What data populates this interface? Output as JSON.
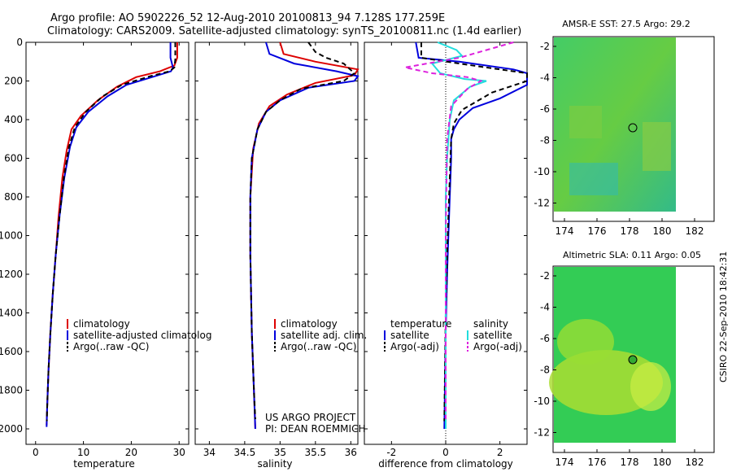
{
  "title": {
    "line1": "Argo profile: AO 5902226_52 12-Aug-2010 20100813_94 7.128S 177.259E",
    "line2": "Climatology: CARS2009. Satellite-adjusted climatology: synTS_20100811.nc (1.4d earlier)"
  },
  "colors": {
    "clim": "#dd0000",
    "sat": "#0000dd",
    "argo": "#000000",
    "sat_sal": "#22dddd",
    "argo_sal": "#dd22dd"
  },
  "chart_data": [
    {
      "type": "line",
      "title": "",
      "xlabel": "temperature",
      "ylabel": "",
      "xlim": [
        -2,
        32
      ],
      "ylim": [
        0,
        2080
      ],
      "y_reversed": true,
      "xticks": [
        "0",
        "10",
        "20",
        "30"
      ],
      "yticks": [
        "0",
        "200",
        "400",
        "600",
        "800",
        "1000",
        "1200",
        "1400",
        "1600",
        "1800",
        "2000"
      ],
      "legend": [
        "climatology",
        "satellite-adjusted climatolog",
        "Argo(..raw -QC)"
      ],
      "series": [
        {
          "name": "climatology",
          "color": "#dd0000",
          "dash": "",
          "points": [
            [
              29.6,
              0
            ],
            [
              29.6,
              80
            ],
            [
              29.0,
              120
            ],
            [
              26,
              150
            ],
            [
              21,
              180
            ],
            [
              17,
              230
            ],
            [
              13,
              300
            ],
            [
              9.5,
              380
            ],
            [
              7.5,
              450
            ],
            [
              6.5,
              560
            ],
            [
              5.6,
              700
            ],
            [
              4.8,
              900
            ],
            [
              4.2,
              1100
            ],
            [
              3.6,
              1300
            ],
            [
              3.1,
              1500
            ],
            [
              2.7,
              1700
            ],
            [
              2.4,
              1900
            ],
            [
              2.3,
              1980
            ]
          ]
        },
        {
          "name": "satellite-adjusted climatology",
          "color": "#0000dd",
          "dash": "",
          "points": [
            [
              28.2,
              0
            ],
            [
              28.2,
              80
            ],
            [
              28.7,
              130
            ],
            [
              28.3,
              150
            ],
            [
              25,
              175
            ],
            [
              19,
              220
            ],
            [
              15,
              280
            ],
            [
              11,
              360
            ],
            [
              8.5,
              440
            ],
            [
              7.2,
              540
            ],
            [
              6,
              700
            ],
            [
              5,
              900
            ],
            [
              4.2,
              1100
            ],
            [
              3.6,
              1300
            ],
            [
              3.1,
              1500
            ],
            [
              2.7,
              1700
            ],
            [
              2.4,
              1900
            ],
            [
              2.3,
              1990
            ]
          ]
        },
        {
          "name": "Argo(..raw -QC)",
          "color": "#000000",
          "dash": "6,4",
          "points": [
            [
              29.2,
              0
            ],
            [
              29.2,
              90
            ],
            [
              29.0,
              130
            ],
            [
              28,
              150
            ],
            [
              24,
              175
            ],
            [
              18,
              220
            ],
            [
              14,
              280
            ],
            [
              10.5,
              360
            ],
            [
              8.2,
              440
            ],
            [
              7.0,
              540
            ],
            [
              5.9,
              700
            ],
            [
              5.0,
              900
            ],
            [
              4.2,
              1100
            ],
            [
              3.6,
              1300
            ],
            [
              3.1,
              1500
            ],
            [
              2.7,
              1700
            ],
            [
              2.4,
              1900
            ],
            [
              2.35,
              1960
            ]
          ]
        }
      ]
    },
    {
      "type": "line",
      "title": "",
      "xlabel": "salinity",
      "ylabel": "",
      "xlim": [
        33.8,
        36.1
      ],
      "ylim": [
        0,
        2080
      ],
      "y_reversed": true,
      "xticks": [
        "34",
        "34.5",
        "35",
        "35.5",
        "36"
      ],
      "legend": [
        "climatology",
        "satellite adj. clim.",
        "Argo(..raw -QC)"
      ],
      "series": [
        {
          "name": "climatology",
          "color": "#dd0000",
          "dash": "",
          "points": [
            [
              35.0,
              0
            ],
            [
              35.05,
              60
            ],
            [
              35.5,
              100
            ],
            [
              36.1,
              140
            ],
            [
              36.05,
              170
            ],
            [
              35.5,
              210
            ],
            [
              35.1,
              270
            ],
            [
              34.85,
              330
            ],
            [
              34.7,
              420
            ],
            [
              34.62,
              550
            ],
            [
              34.58,
              800
            ],
            [
              34.58,
              1100
            ],
            [
              34.6,
              1500
            ],
            [
              34.63,
              1800
            ],
            [
              34.65,
              2000
            ]
          ]
        },
        {
          "name": "satellite adj. clim.",
          "color": "#0000dd",
          "dash": "",
          "points": [
            [
              34.8,
              0
            ],
            [
              34.85,
              60
            ],
            [
              35.2,
              110
            ],
            [
              35.8,
              150
            ],
            [
              36.1,
              175
            ],
            [
              36.05,
              200
            ],
            [
              35.4,
              235
            ],
            [
              35.0,
              300
            ],
            [
              34.8,
              360
            ],
            [
              34.68,
              450
            ],
            [
              34.6,
              600
            ],
            [
              34.58,
              800
            ],
            [
              34.58,
              1100
            ],
            [
              34.6,
              1500
            ],
            [
              34.63,
              1800
            ],
            [
              34.65,
              2000
            ]
          ]
        },
        {
          "name": "Argo(..raw -QC)",
          "color": "#000000",
          "dash": "6,4",
          "points": [
            [
              35.4,
              0
            ],
            [
              35.5,
              50
            ],
            [
              35.65,
              80
            ],
            [
              35.9,
              110
            ],
            [
              36.05,
              160
            ],
            [
              35.9,
              200
            ],
            [
              35.3,
              240
            ],
            [
              35.0,
              300
            ],
            [
              34.8,
              360
            ],
            [
              34.68,
              450
            ],
            [
              34.6,
              600
            ],
            [
              34.58,
              800
            ],
            [
              34.58,
              1100
            ],
            [
              34.6,
              1500
            ],
            [
              34.63,
              1800
            ],
            [
              34.65,
              1950
            ]
          ]
        }
      ],
      "annotations": [
        "US ARGO PROJECT",
        "PI: DEAN ROEMMICH"
      ]
    },
    {
      "type": "line",
      "title": "",
      "xlabel": "difference from climatology",
      "ylabel": "",
      "xlim": [
        -3,
        3
      ],
      "ylim": [
        0,
        2080
      ],
      "y_reversed": true,
      "xticks": [
        "-2",
        "0",
        "2"
      ],
      "legend": [
        "temperature",
        "satellite",
        "Argo(-adj)",
        "salinity",
        "satellite",
        "Argo(-adj)"
      ],
      "series": [
        {
          "name": "temperature satellite",
          "color": "#0000dd",
          "dash": "",
          "points": [
            [
              -1.1,
              0
            ],
            [
              -1.0,
              80
            ],
            [
              0.5,
              100
            ],
            [
              2.5,
              140
            ],
            [
              3,
              160
            ],
            [
              3,
              220
            ],
            [
              2.0,
              290
            ],
            [
              1.0,
              340
            ],
            [
              0.5,
              400
            ],
            [
              0.3,
              450
            ],
            [
              0.2,
              500
            ],
            [
              0.2,
              600
            ],
            [
              0.15,
              800
            ],
            [
              0.1,
              1000
            ],
            [
              0.05,
              1200
            ],
            [
              0.0,
              1500
            ],
            [
              -0.05,
              2000
            ]
          ]
        },
        {
          "name": "temperature Argo(-adj)",
          "color": "#000000",
          "dash": "6,4",
          "points": [
            [
              -0.9,
              0
            ],
            [
              -0.9,
              80
            ],
            [
              0.5,
              110
            ],
            [
              1.5,
              130
            ],
            [
              3,
              160
            ],
            [
              3,
              200
            ],
            [
              1.7,
              260
            ],
            [
              0.6,
              350
            ],
            [
              0.3,
              420
            ],
            [
              0.2,
              500
            ],
            [
              0.15,
              700
            ],
            [
              0.1,
              900
            ],
            [
              0.05,
              1100
            ],
            [
              0.0,
              1400
            ],
            [
              -0.05,
              1960
            ]
          ]
        },
        {
          "name": "salinity satellite",
          "color": "#22dddd",
          "dash": "",
          "points": [
            [
              -0.3,
              0
            ],
            [
              0.4,
              40
            ],
            [
              0.6,
              70
            ],
            [
              -0.5,
              110
            ],
            [
              -0.2,
              160
            ],
            [
              0.7,
              190
            ],
            [
              1.5,
              200
            ],
            [
              0.9,
              230
            ],
            [
              0.3,
              300
            ],
            [
              0.15,
              400
            ],
            [
              0.05,
              600
            ],
            [
              0.0,
              800
            ],
            [
              0.0,
              1200
            ],
            [
              0.0,
              1500
            ],
            [
              0.0,
              2000
            ]
          ]
        },
        {
          "name": "salinity Argo(-adj)",
          "color": "#dd22dd",
          "dash": "6,4",
          "points": [
            [
              2.5,
              0
            ],
            [
              1.5,
              40
            ],
            [
              0.5,
              80
            ],
            [
              -1.5,
              130
            ],
            [
              -0.5,
              160
            ],
            [
              0.8,
              180
            ],
            [
              1.3,
              200
            ],
            [
              0.8,
              240
            ],
            [
              0.2,
              330
            ],
            [
              0.05,
              500
            ],
            [
              0.0,
              1000
            ],
            [
              0.0,
              1500
            ],
            [
              0.0,
              1950
            ]
          ]
        }
      ]
    }
  ],
  "maps": [
    {
      "title": "AMSR-E SST: 27.5 Argo: 29.2",
      "xticks": [
        "174",
        "176",
        "178",
        "180",
        "182"
      ],
      "yticks": [
        "-2",
        "-4",
        "-6",
        "-8",
        "-10",
        "-12"
      ],
      "marker": {
        "lon": 177.259,
        "lat": -7.128
      }
    },
    {
      "title": "Altimetric SLA: 0.11 Argo: 0.05",
      "xticks": [
        "174",
        "176",
        "178",
        "180",
        "182"
      ],
      "yticks": [
        "-2",
        "-4",
        "-6",
        "-8",
        "-10",
        "-12"
      ],
      "marker": {
        "lon": 177.259,
        "lat": -7.128
      }
    }
  ],
  "credit": "CSIRO 22-Sep-2010 18:42:31"
}
